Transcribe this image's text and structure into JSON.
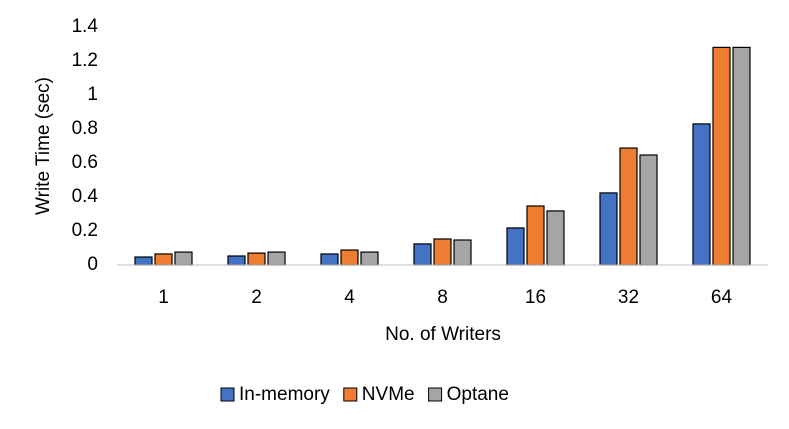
{
  "chart_data": {
    "type": "bar",
    "x_label": "No. of Writers",
    "y_label": "Write Time (sec)",
    "categories": [
      "1",
      "2",
      "4",
      "8",
      "16",
      "32",
      "64"
    ],
    "series": [
      {
        "name": "In-memory",
        "color": "#4472c4",
        "values": [
          0.047,
          0.053,
          0.065,
          0.124,
          0.218,
          0.424,
          0.83
        ]
      },
      {
        "name": "NVMe",
        "color": "#ed7d31",
        "values": [
          0.065,
          0.07,
          0.088,
          0.153,
          0.347,
          0.688,
          1.28
        ]
      },
      {
        "name": "Optane",
        "color": "#a5a5a5",
        "values": [
          0.076,
          0.076,
          0.076,
          0.147,
          0.318,
          0.647,
          1.28
        ]
      }
    ],
    "ylim": [
      0,
      1.4
    ],
    "yticks": [
      0,
      0.2,
      0.4,
      0.6,
      0.8,
      1,
      1.2,
      1.4
    ],
    "grid": false,
    "legend": "bottom"
  }
}
